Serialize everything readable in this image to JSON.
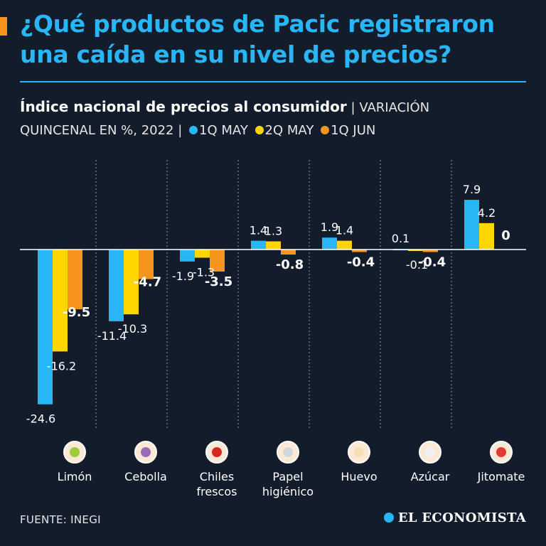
{
  "title": "¿Qué productos de Pacic registraron una caída en su nivel de precios?",
  "subtitle_bold": "Índice nacional de precios al consumidor",
  "subtitle_rest": "| VARIACIÓN",
  "subtitle_line2": "QUINCENAL EN %, 2022 |",
  "footer": "FUENTE: INEGI",
  "brand": "EL ECONOMISTA",
  "colors": {
    "1q_may": "#29b6f6",
    "2q_may": "#ffd600",
    "1q_jun": "#f7941d"
  },
  "chart_data": {
    "type": "bar",
    "categories": [
      "Limón",
      "Cebolla",
      "Chiles frescos",
      "Papel higiénico",
      "Huevo",
      "Azúcar",
      "Jitomate"
    ],
    "series": [
      {
        "name": "1Q MAY",
        "values": [
          -24.6,
          -11.4,
          -1.9,
          1.4,
          1.9,
          0.1,
          7.9
        ],
        "labels": [
          "-24.6",
          "-11.4",
          "-1.9",
          "1.4",
          "1.9",
          "0.1",
          "7.9"
        ]
      },
      {
        "name": "2Q MAY",
        "values": [
          -16.2,
          -10.3,
          -1.3,
          1.3,
          1.4,
          -0.1,
          4.2
        ],
        "labels": [
          "-16.2",
          "-10.3",
          "-1.3",
          "1.3",
          "1.4",
          "-0.1",
          "4.2"
        ]
      },
      {
        "name": "1Q JUN",
        "values": [
          -9.5,
          -4.7,
          -3.5,
          -0.8,
          -0.4,
          -0.4,
          0
        ],
        "labels": [
          "-9.5",
          "-4.7",
          "-3.5",
          "-0.8",
          "-0.4",
          "-0.4",
          "0"
        ]
      }
    ],
    "icons": [
      "lime-icon",
      "onion-icon",
      "chili-icon",
      "toilet-paper-icon",
      "egg-icon",
      "sugar-icon",
      "tomato-icon"
    ]
  }
}
